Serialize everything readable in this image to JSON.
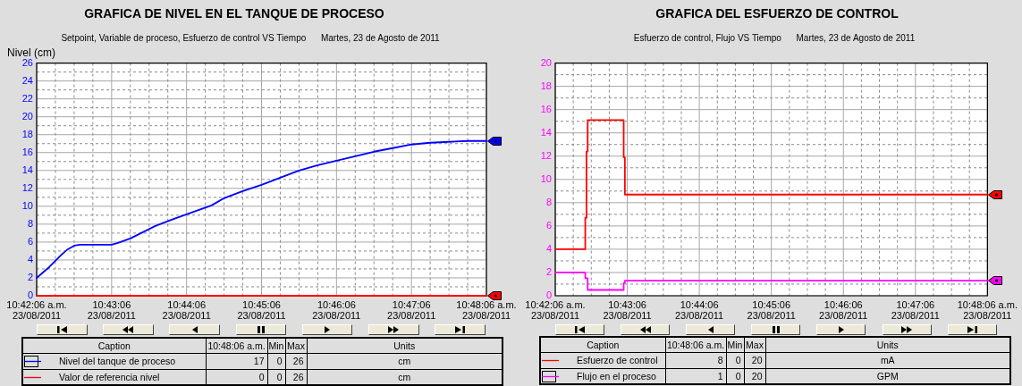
{
  "chart_data": [
    {
      "type": "line",
      "title": "GRAFICA DE NIVEL EN EL TANQUE DE PROCESO",
      "subtitle": "Setpoint, Variable de proceso, Esfuerzo de control VS Tiempo      Martes, 23 de Agosto de 2011",
      "ylabel": "Nivel (cm)",
      "xlim": [
        "2011-08-23T10:42:06",
        "2011-08-23T10:48:06"
      ],
      "xticks": [
        {
          "value": "2011-08-23T10:42:06",
          "label": "10:42:06 a.m.\n23/08/2011"
        },
        {
          "value": "2011-08-23T10:43:06",
          "label": "10:43:06\n23/08/2011"
        },
        {
          "value": "2011-08-23T10:44:06",
          "label": "10:44:06\n23/08/2011"
        },
        {
          "value": "2011-08-23T10:45:06",
          "label": "10:45:06\n23/08/2011"
        },
        {
          "value": "2011-08-23T10:46:06",
          "label": "10:46:06\n23/08/2011"
        },
        {
          "value": "2011-08-23T10:47:06",
          "label": "10:47:06\n23/08/2011"
        },
        {
          "value": "2011-08-23T10:48:06",
          "label": "10:48:06 a.m.\n23/08/2011"
        }
      ],
      "ylim": [
        0,
        26
      ],
      "yticks": [
        0,
        2,
        4,
        6,
        8,
        10,
        12,
        14,
        16,
        18,
        20,
        22,
        24,
        26
      ],
      "grid": true,
      "legend": "bottom",
      "series": [
        {
          "name": "Nivel del tanque de proceso",
          "color": "#0000ff",
          "axis": "y",
          "x": [
            "2011-08-23T10:42:06",
            "2011-08-23T10:42:11",
            "2011-08-23T10:42:16",
            "2011-08-23T10:42:21",
            "2011-08-23T10:42:26",
            "2011-08-23T10:42:31",
            "2011-08-23T10:42:36",
            "2011-08-23T10:42:41",
            "2011-08-23T10:42:51",
            "2011-08-23T10:43:06",
            "2011-08-23T10:43:11",
            "2011-08-23T10:43:21",
            "2011-08-23T10:43:31",
            "2011-08-23T10:43:41",
            "2011-08-23T10:43:56",
            "2011-08-23T10:44:06",
            "2011-08-23T10:44:26",
            "2011-08-23T10:44:36",
            "2011-08-23T10:44:51",
            "2011-08-23T10:45:06",
            "2011-08-23T10:45:21",
            "2011-08-23T10:45:36",
            "2011-08-23T10:45:51",
            "2011-08-23T10:46:06",
            "2011-08-23T10:46:21",
            "2011-08-23T10:46:36",
            "2011-08-23T10:46:51",
            "2011-08-23T10:47:06",
            "2011-08-23T10:47:21",
            "2011-08-23T10:47:36",
            "2011-08-23T10:47:51",
            "2011-08-23T10:48:06"
          ],
          "values": [
            2.0,
            2.6,
            3.2,
            3.9,
            4.6,
            5.2,
            5.6,
            5.7,
            5.7,
            5.7,
            5.9,
            6.4,
            7.1,
            7.8,
            8.6,
            9.1,
            10.1,
            10.9,
            11.7,
            12.4,
            13.2,
            14.0,
            14.6,
            15.1,
            15.6,
            16.1,
            16.5,
            16.9,
            17.1,
            17.2,
            17.3,
            17.3
          ]
        },
        {
          "name": "Valor de referencia nivel",
          "color": "#ff0000",
          "x": [
            "2011-08-23T10:42:06",
            "2011-08-23T10:48:06"
          ],
          "values": [
            0,
            0
          ]
        }
      ],
      "annotations": [
        "Caption",
        "10:48:06 a.m.",
        "Min",
        "Max",
        "Units",
        "17",
        "0",
        "26",
        "cm",
        "0",
        "0",
        "26",
        "cm"
      ]
    },
    {
      "type": "step",
      "title": "GRAFICA DEL ESFUERZO DE CONTROL",
      "subtitle": "Esfuerzo de control, Flujo VS Tiempo      Martes, 23 de Agosto de 2011",
      "xlim": [
        "2011-08-23T10:42:06",
        "2011-08-23T10:48:06"
      ],
      "xticks": [
        {
          "value": "2011-08-23T10:42:06",
          "label": "10:42:06 a.m.\n23/08/2011"
        },
        {
          "value": "2011-08-23T10:43:06",
          "label": "10:43:06\n23/08/2011"
        },
        {
          "value": "2011-08-23T10:44:06",
          "label": "10:44:06\n23/08/2011"
        },
        {
          "value": "2011-08-23T10:45:06",
          "label": "10:45:06\n23/08/2011"
        },
        {
          "value": "2011-08-23T10:46:06",
          "label": "10:46:06\n23/08/2011"
        },
        {
          "value": "2011-08-23T10:47:06",
          "label": "10:47:06\n23/08/2011"
        },
        {
          "value": "2011-08-23T10:48:06",
          "label": "10:48:06 a.m.\n23/08/2011"
        }
      ],
      "ylim": [
        0,
        20
      ],
      "yticks": [
        0,
        2,
        4,
        6,
        8,
        10,
        12,
        14,
        16,
        18,
        20
      ],
      "grid": true,
      "legend": "bottom",
      "series": [
        {
          "name": "Esfuerzo de control",
          "color": "#ff0000",
          "x": [
            "2011-08-23T10:42:06",
            "2011-08-23T10:42:31",
            "2011-08-23T10:42:32",
            "2011-08-23T10:42:33",
            "2011-08-23T10:43:03",
            "2011-08-23T10:43:04",
            "2011-08-23T10:48:06"
          ],
          "values": [
            4.0,
            6.7,
            12.4,
            15.1,
            11.9,
            8.7,
            8.7
          ]
        },
        {
          "name": "Flujo en el proceso",
          "color": "#ff00ff",
          "axis": "y",
          "x": [
            "2011-08-23T10:42:06",
            "2011-08-23T10:42:31",
            "2011-08-23T10:42:33",
            "2011-08-23T10:43:03",
            "2011-08-23T10:43:04",
            "2011-08-23T10:48:06"
          ],
          "values": [
            2.0,
            1.5,
            0.5,
            1.1,
            1.3,
            1.3
          ]
        }
      ],
      "annotations": [
        "Caption",
        "10:48:06 a.m.",
        "Min",
        "Max",
        "Units",
        "8",
        "0",
        "20",
        "mA",
        "1",
        "0",
        "20",
        "GPM"
      ]
    }
  ]
}
